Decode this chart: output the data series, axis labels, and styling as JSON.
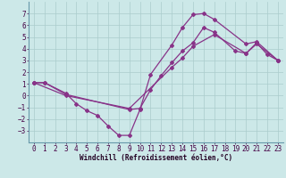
{
  "background_color": "#cce8e8",
  "grid_color": "#aacccc",
  "line_color": "#883388",
  "marker": "D",
  "marker_size": 2.0,
  "line_width": 0.9,
  "xlabel": "Windchill (Refroidissement éolien,°C)",
  "xlabel_fontsize": 5.5,
  "tick_fontsize": 5.5,
  "xlim": [
    -0.5,
    23.5
  ],
  "ylim": [
    -4,
    8
  ],
  "xticks": [
    0,
    1,
    2,
    3,
    4,
    5,
    6,
    7,
    8,
    9,
    10,
    11,
    12,
    13,
    14,
    15,
    16,
    17,
    18,
    19,
    20,
    21,
    22,
    23
  ],
  "yticks": [
    -3,
    -2,
    -1,
    0,
    1,
    2,
    3,
    4,
    5,
    6,
    7
  ],
  "curves": [
    {
      "x": [
        0,
        1,
        3,
        4,
        5,
        6,
        7,
        8,
        9,
        10,
        11,
        13,
        14,
        15,
        16,
        17,
        20,
        21,
        23
      ],
      "y": [
        1.1,
        1.1,
        0.2,
        -0.7,
        -1.3,
        -1.7,
        -2.6,
        -3.4,
        -3.4,
        -1.2,
        1.8,
        4.3,
        5.8,
        6.9,
        7.0,
        6.5,
        4.4,
        4.6,
        3.0
      ]
    },
    {
      "x": [
        0,
        1,
        3,
        9,
        10,
        11,
        12,
        13,
        14,
        15,
        16,
        17,
        19,
        20,
        21,
        22,
        23
      ],
      "y": [
        1.1,
        1.1,
        0.1,
        -1.2,
        -1.1,
        0.5,
        1.7,
        2.8,
        3.8,
        4.5,
        5.8,
        5.4,
        3.8,
        3.6,
        4.5,
        3.5,
        3.0
      ]
    },
    {
      "x": [
        0,
        3,
        9,
        13,
        14,
        15,
        17,
        20,
        21,
        23
      ],
      "y": [
        1.1,
        0.0,
        -1.1,
        2.4,
        3.2,
        4.2,
        5.2,
        3.6,
        4.4,
        3.0
      ]
    }
  ]
}
